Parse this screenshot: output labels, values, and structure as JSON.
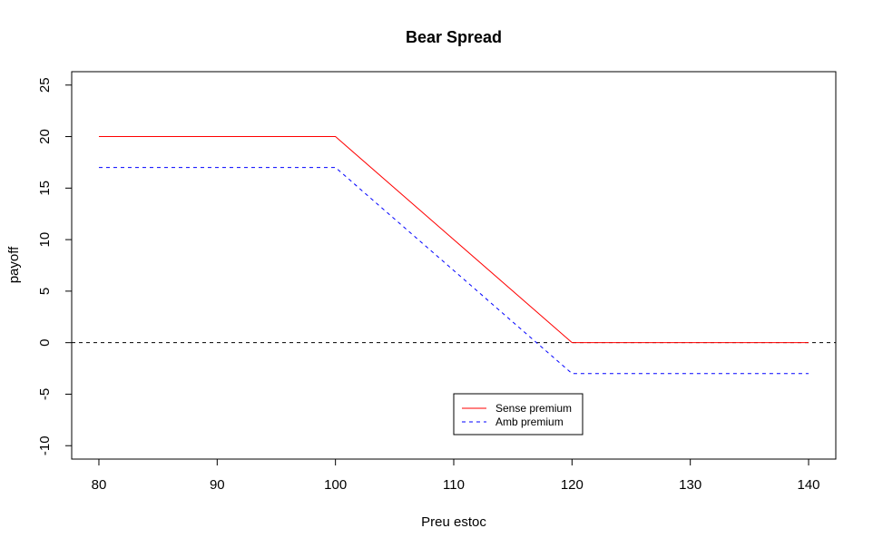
{
  "chart_data": {
    "type": "line",
    "title": "Bear Spread",
    "xlabel": "Preu estoc",
    "ylabel": "payoff",
    "xlim": [
      77.7,
      142.3
    ],
    "ylim": [
      -11.3,
      26.3
    ],
    "x_ticks": [
      80,
      90,
      100,
      110,
      120,
      130,
      140
    ],
    "y_ticks": [
      -10,
      -5,
      0,
      5,
      10,
      15,
      20,
      25
    ],
    "grid": false,
    "legend_position": "bottom-center",
    "series": [
      {
        "name": "Sense premium",
        "color": "#ff0000",
        "dash": "solid",
        "x": [
          80,
          100,
          120,
          140
        ],
        "y": [
          20,
          20,
          0,
          0
        ]
      },
      {
        "name": "Amb premium",
        "color": "#0000ff",
        "dash": "dashed",
        "x": [
          80,
          100,
          120,
          140
        ],
        "y": [
          17,
          17,
          -3,
          -3
        ]
      }
    ],
    "reference_lines": [
      {
        "orientation": "horizontal",
        "y": 0,
        "color": "#000000",
        "dash": "dashed"
      }
    ]
  }
}
